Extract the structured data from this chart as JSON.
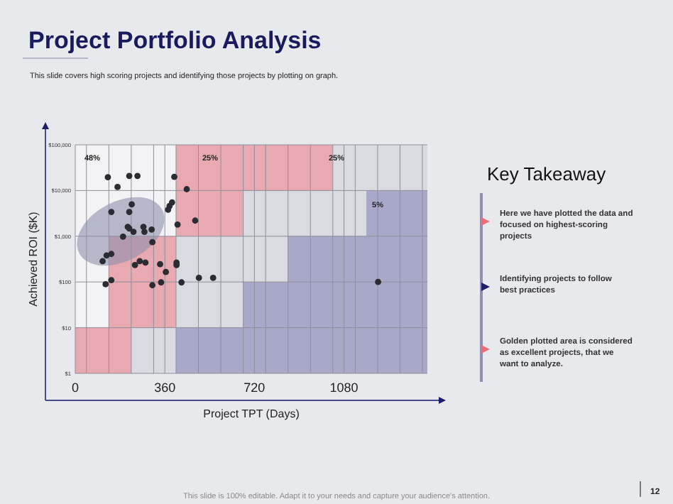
{
  "chart_data": {
    "type": "scatter",
    "title": "Project Portfolio Analysis",
    "subtitle": "This slide covers high scoring projects and identifying those projects by plotting on graph.",
    "xlabel": "Project TPT (Days)",
    "ylabel": "Achieved ROI ($K)",
    "log": "y",
    "grid": true,
    "xlim": [
      0,
      1415
    ],
    "ylim": [
      1,
      100000
    ],
    "xticks": [
      0,
      {
        "value": 45,
        "label": null
      },
      {
        "value": 135,
        "label": null
      },
      {
        "value": 225,
        "label": null
      },
      {
        "value": 315,
        "label": null
      },
      360,
      {
        "value": 405,
        "label": null
      },
      {
        "value": 495,
        "label": null
      },
      {
        "value": 585,
        "label": null
      },
      {
        "value": 675,
        "label": null
      },
      720,
      {
        "value": 765,
        "label": null
      },
      {
        "value": 855,
        "label": null
      },
      {
        "value": 945,
        "label": null
      },
      {
        "value": 1035,
        "label": null
      },
      1080,
      {
        "value": 1125,
        "label": null
      },
      {
        "value": 1215,
        "label": null
      },
      {
        "value": 1305,
        "label": null
      },
      {
        "value": 1395,
        "label": null
      }
    ],
    "yticks": [
      {
        "value": 1,
        "label": "$1"
      },
      {
        "value": 10,
        "label": "$10"
      },
      {
        "value": 100,
        "label": "$100"
      },
      {
        "value": 1000,
        "label": "$1,000"
      },
      {
        "value": 10000,
        "label": "$10,000"
      },
      {
        "value": 100000,
        "label": "$100,000"
      }
    ],
    "series": [
      {
        "type": "area",
        "color": "#f3f3f5",
        "x": [
          0,
          405
        ],
        "values": [
          100000,
          100000
        ]
      },
      {
        "type": "area",
        "color": "#e9a9b0",
        "x": [
          0,
          135,
          135,
          405,
          405,
          1035
        ],
        "values": [
          10,
          10,
          1000,
          1000,
          100000,
          100000
        ]
      },
      {
        "type": "area",
        "color": "#dadbe0",
        "x": [
          225,
          405,
          405,
          675,
          675,
          1035,
          1035,
          1415
        ],
        "values": [
          10,
          10,
          1000,
          1000,
          10000,
          10000,
          100000,
          100000
        ]
      },
      {
        "type": "area",
        "color": "#a8a9c8",
        "x": [
          405,
          675,
          675,
          855,
          855,
          1170,
          1170,
          1415
        ],
        "values": [
          10,
          10,
          100,
          100,
          1000,
          1000,
          10000,
          10000
        ]
      },
      {
        "marker": "circle",
        "color": "#2b2b33",
        "x": [
          131,
          217,
          250,
          398,
          170,
          448,
          145,
          389,
          379,
          373,
          227,
          217,
          411,
          482,
          211,
          217,
          234,
          274,
          278,
          307,
          192,
          310,
          145,
          126,
          110,
          240,
          259,
          282,
          341,
          364,
          407,
          407,
          145,
          122,
          310,
          345,
          427,
          497,
          554,
          1217
        ],
        "values": [
          19500,
          20900,
          20900,
          19900,
          12000,
          10700,
          3400,
          5500,
          4600,
          3800,
          5000,
          3400,
          1800,
          2200,
          1600,
          1480,
          1250,
          1600,
          1250,
          1400,
          980,
          740,
          410,
          380,
          285,
          235,
          285,
          265,
          245,
          165,
          265,
          235,
          110,
          89,
          85,
          98,
          98,
          123,
          123,
          100
        ]
      }
    ],
    "annotations": [
      "48%",
      "25%",
      "25%",
      "5%",
      "Key Takeaway",
      "Here we have plotted the data and focused on highest-scoring projects",
      "Identifying projects to follow best practices",
      "Golden plotted area is considered as excellent projects, that we want to analyze.",
      "This slide is 100% editable. Adapt it to your needs and capture your audience's attention.",
      "12"
    ]
  }
}
